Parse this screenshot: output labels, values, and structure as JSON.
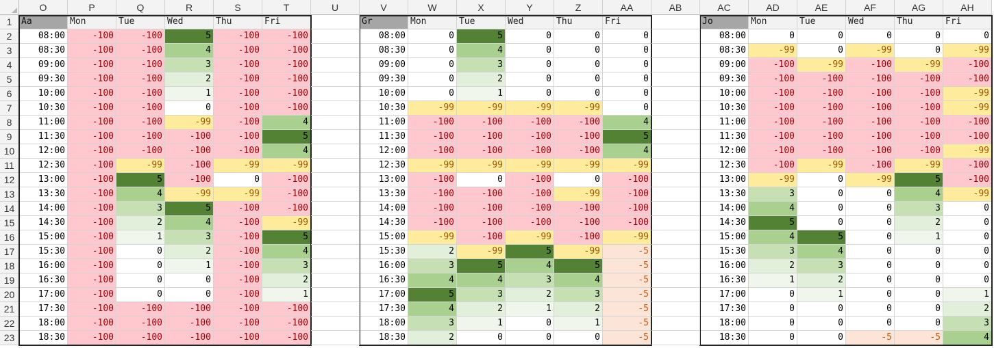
{
  "columns": [
    "O",
    "P",
    "Q",
    "R",
    "S",
    "T",
    "U",
    "V",
    "W",
    "X",
    "Y",
    "Z",
    "AA",
    "AB",
    "AC",
    "AD",
    "AE",
    "AF",
    "AG",
    "AH"
  ],
  "row_numbers": [
    "1",
    "2",
    "3",
    "4",
    "5",
    "6",
    "7",
    "8",
    "9",
    "10",
    "11",
    "12",
    "13",
    "14",
    "15",
    "16",
    "17",
    "18",
    "19",
    "20",
    "21",
    "22",
    "23"
  ],
  "days": [
    "Mon",
    "Tue",
    "Wed",
    "Thu",
    "Fri"
  ],
  "times": [
    "08:00",
    "08:30",
    "09:00",
    "09:30",
    "10:00",
    "10:30",
    "11:00",
    "11:30",
    "12:00",
    "12:30",
    "13:00",
    "13:30",
    "14:00",
    "14:30",
    "15:00",
    "15:30",
    "16:00",
    "16:30",
    "17:00",
    "17:30",
    "18:00",
    "18:30"
  ],
  "colors": {
    "red_bg": "#ffc7ce",
    "red_text": "#9c0006",
    "yellow_bg": "#ffeb9c",
    "yellow_text": "#9c5700",
    "peach_bg": "#fce4d6",
    "peach_text": "#c65911",
    "green_text": "#000000",
    "green_scale": [
      "#ffffff",
      "#f0f6ec",
      "#e2efda",
      "#c6e0b4",
      "#a9d08e",
      "#548235"
    ]
  },
  "tables": [
    {
      "name": "Aa",
      "values": [
        [
          "-100",
          "-100",
          "5",
          "-100",
          "-100"
        ],
        [
          "-100",
          "-100",
          "4",
          "-100",
          "-100"
        ],
        [
          "-100",
          "-100",
          "3",
          "-100",
          "-100"
        ],
        [
          "-100",
          "-100",
          "2",
          "-100",
          "-100"
        ],
        [
          "-100",
          "-100",
          "1",
          "-100",
          "-100"
        ],
        [
          "-100",
          "-100",
          "0",
          "-100",
          "-100"
        ],
        [
          "-100",
          "-100",
          "-99",
          "-100",
          "4"
        ],
        [
          "-100",
          "-100",
          "-100",
          "-100",
          "5"
        ],
        [
          "-100",
          "-100",
          "-100",
          "-100",
          "4"
        ],
        [
          "-100",
          "-99",
          "-100",
          "-99",
          "-99"
        ],
        [
          "-100",
          "5",
          "-100",
          "0",
          "-100"
        ],
        [
          "-100",
          "4",
          "-99",
          "-99",
          "-100"
        ],
        [
          "-100",
          "3",
          "5",
          "-100",
          "-100"
        ],
        [
          "-100",
          "2",
          "4",
          "-100",
          "-99"
        ],
        [
          "-100",
          "1",
          "3",
          "-100",
          "5"
        ],
        [
          "-100",
          "0",
          "2",
          "-100",
          "4"
        ],
        [
          "-100",
          "0",
          "1",
          "-100",
          "3"
        ],
        [
          "-100",
          "0",
          "0",
          "-100",
          "2"
        ],
        [
          "-100",
          "0",
          "0",
          "-100",
          "1"
        ],
        [
          "-100",
          "-100",
          "-100",
          "-100",
          "-100"
        ],
        [
          "-100",
          "-100",
          "-100",
          "-100",
          "-100"
        ],
        [
          "-100",
          "-100",
          "-100",
          "-100",
          "-100"
        ]
      ]
    },
    {
      "name": "Gr",
      "values": [
        [
          "0",
          "5",
          "0",
          "0",
          "0"
        ],
        [
          "0",
          "4",
          "0",
          "0",
          "0"
        ],
        [
          "0",
          "3",
          "0",
          "0",
          "0"
        ],
        [
          "0",
          "2",
          "0",
          "0",
          "0"
        ],
        [
          "0",
          "1",
          "0",
          "0",
          "0"
        ],
        [
          "-99",
          "-99",
          "-99",
          "-99",
          "0"
        ],
        [
          "-100",
          "-100",
          "-100",
          "-100",
          "4"
        ],
        [
          "-100",
          "-100",
          "-100",
          "-100",
          "5"
        ],
        [
          "-100",
          "-100",
          "-100",
          "-100",
          "4"
        ],
        [
          "-99",
          "-99",
          "-99",
          "-99",
          "-99"
        ],
        [
          "-100",
          "0",
          "-100",
          "0",
          "-100"
        ],
        [
          "-100",
          "-100",
          "-100",
          "-99",
          "-100"
        ],
        [
          "-100",
          "-100",
          "-100",
          "-100",
          "-100"
        ],
        [
          "-100",
          "-100",
          "-100",
          "-100",
          "-100"
        ],
        [
          "-99",
          "-100",
          "-99",
          "-100",
          "-99"
        ],
        [
          "2",
          "-99",
          "5",
          "-99",
          "-5"
        ],
        [
          "3",
          "5",
          "4",
          "5",
          "-5"
        ],
        [
          "4",
          "4",
          "3",
          "4",
          "-5"
        ],
        [
          "5",
          "3",
          "2",
          "3",
          "-5"
        ],
        [
          "4",
          "2",
          "1",
          "2",
          "-5"
        ],
        [
          "3",
          "1",
          "0",
          "1",
          "-5"
        ],
        [
          "2",
          "0",
          "0",
          "0",
          "-5"
        ]
      ]
    },
    {
      "name": "Jo",
      "values": [
        [
          "0",
          "0",
          "0",
          "0",
          "0"
        ],
        [
          "-99",
          "0",
          "-99",
          "0",
          "-99"
        ],
        [
          "-100",
          "-99",
          "-100",
          "-99",
          "-100"
        ],
        [
          "-100",
          "-100",
          "-100",
          "-100",
          "-100"
        ],
        [
          "-100",
          "-100",
          "-100",
          "-100",
          "-99"
        ],
        [
          "-100",
          "-100",
          "-100",
          "-100",
          "-99"
        ],
        [
          "-100",
          "-100",
          "-100",
          "-100",
          "-100"
        ],
        [
          "-100",
          "-100",
          "-100",
          "-100",
          "-100"
        ],
        [
          "-100",
          "-100",
          "-100",
          "-100",
          "-99"
        ],
        [
          "-100",
          "-99",
          "-100",
          "-99",
          "-100"
        ],
        [
          "-99",
          "0",
          "-99",
          "5",
          "-100"
        ],
        [
          "3",
          "0",
          "0",
          "4",
          "-99"
        ],
        [
          "4",
          "0",
          "0",
          "3",
          "0"
        ],
        [
          "5",
          "0",
          "0",
          "2",
          "0"
        ],
        [
          "4",
          "5",
          "0",
          "1",
          "0"
        ],
        [
          "3",
          "4",
          "0",
          "0",
          "0"
        ],
        [
          "2",
          "3",
          "0",
          "0",
          "0"
        ],
        [
          "1",
          "2",
          "0",
          "0",
          "0"
        ],
        [
          "0",
          "1",
          "0",
          "0",
          "1"
        ],
        [
          "0",
          "0",
          "0",
          "0",
          "2"
        ],
        [
          "0",
          "0",
          "0",
          "0",
          "3"
        ],
        [
          "0",
          "0",
          "-5",
          "-5",
          "4"
        ]
      ]
    }
  ]
}
